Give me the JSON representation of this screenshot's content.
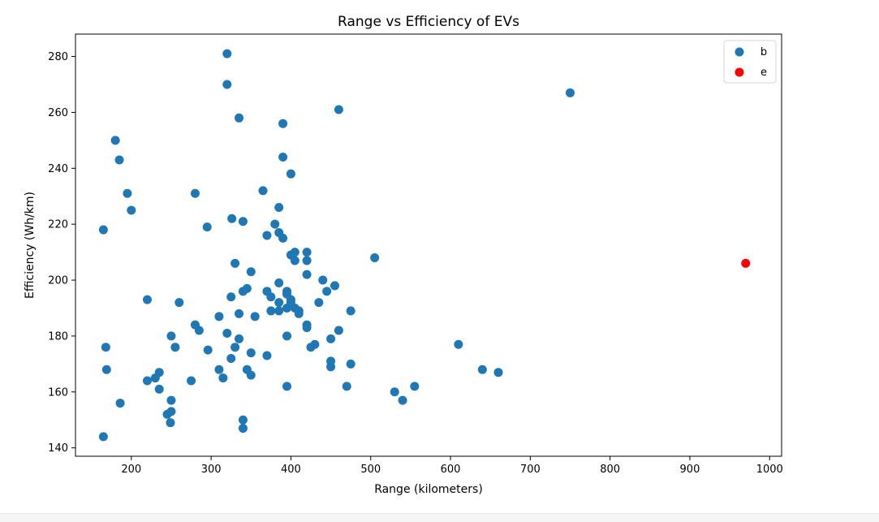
{
  "chart_data": {
    "type": "scatter",
    "title": "Range vs Efficiency of EVs",
    "xlabel": "Range (kilometers)",
    "ylabel": "Efficiency (Wh/km)",
    "xlim": [
      130,
      1015
    ],
    "ylim": [
      137,
      288
    ],
    "xticks": [
      200,
      300,
      400,
      500,
      600,
      700,
      800,
      900,
      1000
    ],
    "yticks": [
      140,
      160,
      180,
      200,
      220,
      240,
      260,
      280
    ],
    "grid": false,
    "legend_position": "top-right",
    "series": [
      {
        "name": "b",
        "color": "#1f77b4",
        "points": [
          [
            165,
            144
          ],
          [
            165,
            218
          ],
          [
            168,
            176
          ],
          [
            169,
            168
          ],
          [
            180,
            250
          ],
          [
            185,
            243
          ],
          [
            186,
            156
          ],
          [
            195,
            231
          ],
          [
            200,
            225
          ],
          [
            220,
            193
          ],
          [
            220,
            164
          ],
          [
            230,
            165
          ],
          [
            235,
            167
          ],
          [
            235,
            161
          ],
          [
            245,
            152
          ],
          [
            249,
            149
          ],
          [
            250,
            153
          ],
          [
            250,
            157
          ],
          [
            250,
            180
          ],
          [
            255,
            176
          ],
          [
            260,
            192
          ],
          [
            275,
            164
          ],
          [
            280,
            184
          ],
          [
            280,
            231
          ],
          [
            285,
            182
          ],
          [
            295,
            219
          ],
          [
            296,
            175
          ],
          [
            310,
            187
          ],
          [
            310,
            168
          ],
          [
            315,
            165
          ],
          [
            320,
            181
          ],
          [
            320,
            281
          ],
          [
            320,
            270
          ],
          [
            325,
            194
          ],
          [
            325,
            172
          ],
          [
            326,
            222
          ],
          [
            330,
            206
          ],
          [
            330,
            176
          ],
          [
            335,
            188
          ],
          [
            335,
            179
          ],
          [
            335,
            258
          ],
          [
            340,
            196
          ],
          [
            340,
            150
          ],
          [
            340,
            147
          ],
          [
            340,
            221
          ],
          [
            345,
            197
          ],
          [
            345,
            168
          ],
          [
            350,
            203
          ],
          [
            350,
            174
          ],
          [
            350,
            166
          ],
          [
            355,
            187
          ],
          [
            365,
            232
          ],
          [
            370,
            216
          ],
          [
            370,
            196
          ],
          [
            370,
            173
          ],
          [
            375,
            194
          ],
          [
            375,
            189
          ],
          [
            380,
            220
          ],
          [
            385,
            226
          ],
          [
            385,
            217
          ],
          [
            385,
            199
          ],
          [
            385,
            192
          ],
          [
            385,
            189
          ],
          [
            390,
            215
          ],
          [
            390,
            256
          ],
          [
            390,
            244
          ],
          [
            395,
            196
          ],
          [
            395,
            195
          ],
          [
            395,
            190
          ],
          [
            395,
            180
          ],
          [
            395,
            162
          ],
          [
            400,
            238
          ],
          [
            400,
            209
          ],
          [
            400,
            193
          ],
          [
            400,
            192
          ],
          [
            405,
            210
          ],
          [
            405,
            207
          ],
          [
            405,
            190
          ],
          [
            410,
            189
          ],
          [
            410,
            188
          ],
          [
            420,
            210
          ],
          [
            420,
            207
          ],
          [
            420,
            202
          ],
          [
            420,
            184
          ],
          [
            420,
            183
          ],
          [
            425,
            176
          ],
          [
            430,
            177
          ],
          [
            435,
            192
          ],
          [
            440,
            200
          ],
          [
            445,
            196
          ],
          [
            450,
            179
          ],
          [
            450,
            171
          ],
          [
            450,
            169
          ],
          [
            455,
            198
          ],
          [
            460,
            261
          ],
          [
            460,
            182
          ],
          [
            470,
            162
          ],
          [
            475,
            189
          ],
          [
            475,
            170
          ],
          [
            505,
            208
          ],
          [
            530,
            160
          ],
          [
            540,
            157
          ],
          [
            555,
            162
          ],
          [
            610,
            177
          ],
          [
            640,
            168
          ],
          [
            660,
            167
          ],
          [
            750,
            267
          ]
        ]
      },
      {
        "name": "e",
        "color": "#ff0000",
        "points": [
          [
            970,
            206
          ]
        ]
      }
    ]
  }
}
